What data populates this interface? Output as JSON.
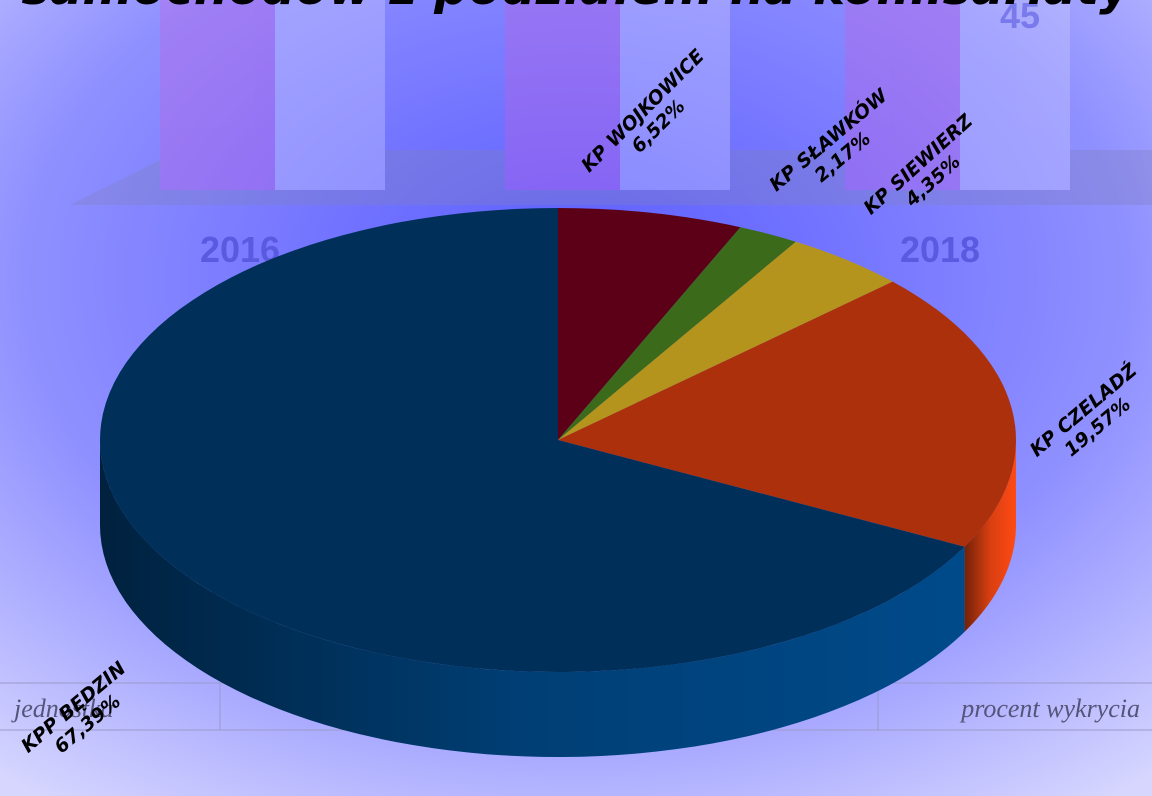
{
  "chart_data": {
    "type": "pie3d",
    "title": "samochodów z podziałem na komisariaty",
    "categories": [
      "KP WOJKOWICE",
      "KP SŁAWKÓW",
      "KP SIEWIERZ",
      "KP CZELADŹ",
      "KPP BĘDZIN"
    ],
    "values": [
      6.52,
      2.17,
      4.35,
      19.57,
      67.39
    ],
    "value_labels": [
      "6,52%",
      "2,17%",
      "4,35%",
      "19,57%",
      "67,39%"
    ],
    "colors": [
      "#5c0018",
      "#3b6b1a",
      "#b4941c",
      "#ad300c",
      "#00305a"
    ],
    "side_colors": [
      "#3d0010",
      "#284a12",
      "#7d6614",
      "#ff4a14",
      "#004a8a"
    ]
  },
  "background": {
    "labels": [
      "2016",
      "2018",
      "45"
    ],
    "table": [
      "jednostka",
      "procent wykrycia"
    ]
  }
}
